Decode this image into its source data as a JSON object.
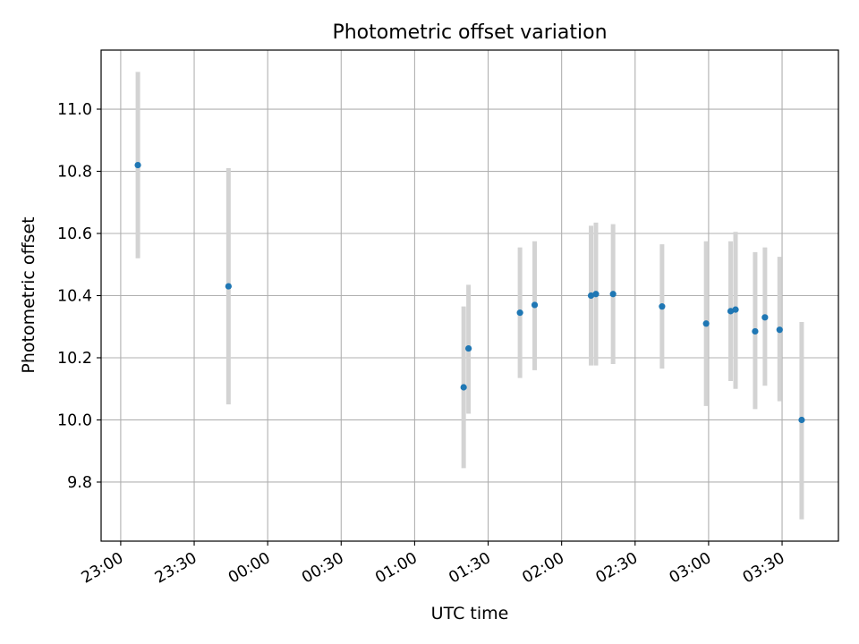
{
  "chart_data": {
    "type": "scatter",
    "title": "Photometric offset variation",
    "xlabel": "UTC time",
    "ylabel": "Photometric offset",
    "grid": true,
    "xlim": [
      "22:52",
      "03:53"
    ],
    "ylim": [
      9.61,
      11.19
    ],
    "x_ticks": [
      "23:00",
      "23:30",
      "00:00",
      "00:30",
      "01:00",
      "01:30",
      "02:00",
      "02:30",
      "03:00",
      "03:30"
    ],
    "y_ticks": [
      "9.8",
      "10.0",
      "10.2",
      "10.4",
      "10.6",
      "10.8",
      "11.0"
    ],
    "point_color": "#1f77b4",
    "errorbar_color": "#d3d3d3",
    "series": [
      {
        "points": [
          {
            "x": "23:07",
            "y": 10.82,
            "ylow": 10.52,
            "yhigh": 11.12
          },
          {
            "x": "23:44",
            "y": 10.43,
            "ylow": 10.05,
            "yhigh": 10.81
          },
          {
            "x": "01:20",
            "y": 10.105,
            "ylow": 9.845,
            "yhigh": 10.365
          },
          {
            "x": "01:22",
            "y": 10.23,
            "ylow": 10.02,
            "yhigh": 10.435
          },
          {
            "x": "01:43",
            "y": 10.345,
            "ylow": 10.135,
            "yhigh": 10.555
          },
          {
            "x": "01:49",
            "y": 10.37,
            "ylow": 10.16,
            "yhigh": 10.575
          },
          {
            "x": "02:12",
            "y": 10.4,
            "ylow": 10.175,
            "yhigh": 10.625
          },
          {
            "x": "02:14",
            "y": 10.405,
            "ylow": 10.175,
            "yhigh": 10.635
          },
          {
            "x": "02:21",
            "y": 10.405,
            "ylow": 10.18,
            "yhigh": 10.63
          },
          {
            "x": "02:41",
            "y": 10.365,
            "ylow": 10.165,
            "yhigh": 10.565
          },
          {
            "x": "02:59",
            "y": 10.31,
            "ylow": 10.045,
            "yhigh": 10.575
          },
          {
            "x": "03:09",
            "y": 10.35,
            "ylow": 10.125,
            "yhigh": 10.575
          },
          {
            "x": "03:11",
            "y": 10.355,
            "ylow": 10.1,
            "yhigh": 10.605
          },
          {
            "x": "03:19",
            "y": 10.285,
            "ylow": 10.035,
            "yhigh": 10.54
          },
          {
            "x": "03:23",
            "y": 10.33,
            "ylow": 10.11,
            "yhigh": 10.555
          },
          {
            "x": "03:29",
            "y": 10.29,
            "ylow": 10.06,
            "yhigh": 10.525
          },
          {
            "x": "03:38",
            "y": 10.0,
            "ylow": 9.68,
            "yhigh": 10.315
          }
        ]
      }
    ]
  }
}
